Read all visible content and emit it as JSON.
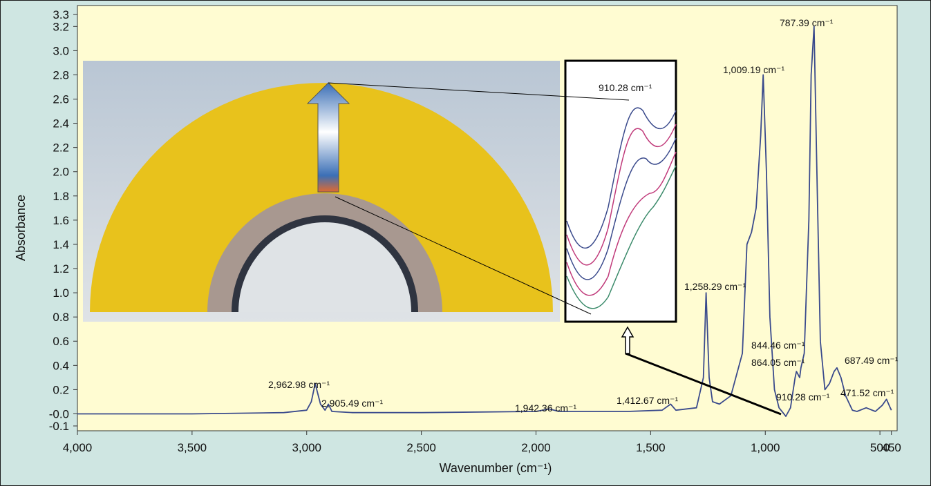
{
  "chart_data": {
    "type": "line",
    "x_label": "Wavenumber (cm⁻¹)",
    "y_label": "Absorbance",
    "x": [
      4000,
      3500,
      3100,
      3000,
      2980,
      2962.98,
      2940,
      2920,
      2905.49,
      2890,
      2800,
      2500,
      2000,
      1942.36,
      1900,
      1600,
      1450,
      1412.67,
      1390,
      1300,
      1270,
      1258.29,
      1245,
      1230,
      1200,
      1150,
      1100,
      1080,
      1060,
      1040,
      1020,
      1009.19,
      995,
      980,
      960,
      940,
      910.28,
      890,
      870,
      864.05,
      850,
      844.46,
      830,
      810,
      800,
      787.39,
      775,
      760,
      740,
      720,
      700,
      687.49,
      670,
      650,
      620,
      600,
      560,
      520,
      490,
      471.52,
      455,
      450
    ],
    "series": [
      {
        "color": "#3a4a8c",
        "values": [
          0.0,
          0.0,
          0.01,
          0.03,
          0.1,
          0.25,
          0.08,
          0.03,
          0.08,
          0.02,
          0.01,
          0.01,
          0.02,
          0.04,
          0.02,
          0.02,
          0.03,
          0.08,
          0.03,
          0.05,
          0.3,
          1.0,
          0.3,
          0.1,
          0.08,
          0.15,
          0.5,
          1.4,
          1.5,
          1.7,
          2.3,
          2.8,
          2.0,
          0.8,
          0.2,
          0.05,
          -0.02,
          0.05,
          0.3,
          0.35,
          0.3,
          0.38,
          0.5,
          1.6,
          2.8,
          3.2,
          2.0,
          0.6,
          0.2,
          0.25,
          0.35,
          0.38,
          0.3,
          0.15,
          0.03,
          0.02,
          0.05,
          0.02,
          0.07,
          0.12,
          0.05,
          0.03
        ]
      }
    ],
    "xlim": [
      4000,
      425
    ],
    "xticks": [
      {
        "value": 4000,
        "label": "4,000"
      },
      {
        "value": 3500,
        "label": "3,500"
      },
      {
        "value": 3000,
        "label": "3,000"
      },
      {
        "value": 2500,
        "label": "2,500"
      },
      {
        "value": 2000,
        "label": "2,000"
      },
      {
        "value": 1500,
        "label": "1,500"
      },
      {
        "value": 1000,
        "label": "1,000"
      },
      500,
      450
    ],
    "ylim": [
      -0.1,
      3.35
    ],
    "yticks": [
      -0.1,
      {
        "value": 0,
        "label": "-0.0"
      },
      0.2,
      0.4,
      0.6,
      0.8,
      {
        "value": 1,
        "label": "1.0"
      },
      1.2,
      1.4,
      1.6,
      1.8,
      {
        "value": 2,
        "label": "2.0"
      },
      2.2,
      2.4,
      2.6,
      2.8,
      {
        "value": 3,
        "label": "3.0"
      },
      3.2,
      3.3
    ],
    "annotations": [
      "787.39 cm⁻¹",
      "1,009.19 cm⁻¹",
      "1,258.29 cm⁻¹",
      "844.46 cm⁻¹",
      "864.05 cm⁻¹",
      "687.49 cm⁻¹",
      "910.28 cm⁻¹",
      "471.52 cm⁻¹",
      "2,962.98 cm⁻¹",
      "2,905.49 cm⁻¹",
      "1,942.36 cm⁻¹",
      "1,412.67 cm⁻¹",
      "910.28 cm⁻¹"
    ]
  }
}
